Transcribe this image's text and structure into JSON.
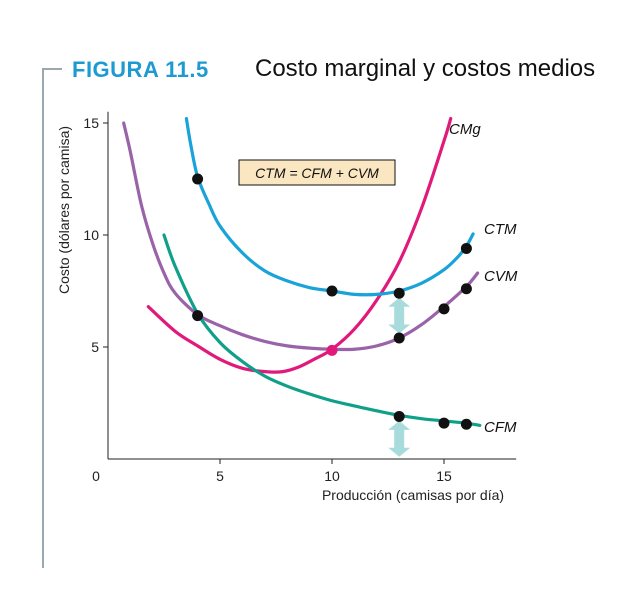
{
  "figure": {
    "label": "FIGURA 11.5",
    "title": "Costo marginal y costos medios"
  },
  "chart_data": {
    "type": "line",
    "xlabel": "Producción (camisas por día)",
    "ylabel": "Costo (dólares por camisa)",
    "xlim": [
      0,
      18
    ],
    "ylim": [
      0,
      15.5
    ],
    "x_ticks": [
      0,
      5,
      10,
      15
    ],
    "y_ticks": [
      5,
      10,
      15
    ],
    "grid": false,
    "annotation": "CTM = CFM + CVM",
    "annotation_box_color": "#fbe6c2",
    "arrow_color": "#a8dcdc",
    "dot_color": "#111111",
    "series": [
      {
        "name": "CMg",
        "color": "#e0197a",
        "points": [
          [
            1.8,
            6.8
          ],
          [
            3,
            5.7
          ],
          [
            4,
            5.05
          ],
          [
            5,
            4.45
          ],
          [
            6,
            4.05
          ],
          [
            7,
            3.9
          ],
          [
            7.8,
            3.9
          ],
          [
            8.5,
            4.1
          ],
          [
            9.2,
            4.45
          ],
          [
            10,
            4.9
          ],
          [
            11,
            5.8
          ],
          [
            12,
            7.1
          ],
          [
            13,
            8.8
          ],
          [
            14,
            11.2
          ],
          [
            15,
            14.2
          ],
          [
            15.3,
            15.2
          ]
        ]
      },
      {
        "name": "CTM",
        "color": "#1aa3d8",
        "points": [
          [
            3.5,
            15.2
          ],
          [
            3.7,
            14
          ],
          [
            4,
            12.6
          ],
          [
            4.5,
            11.4
          ],
          [
            5,
            10.4
          ],
          [
            6,
            9.2
          ],
          [
            7,
            8.4
          ],
          [
            8,
            7.95
          ],
          [
            9,
            7.65
          ],
          [
            10,
            7.5
          ],
          [
            11,
            7.35
          ],
          [
            12,
            7.35
          ],
          [
            13,
            7.5
          ],
          [
            14,
            7.85
          ],
          [
            15,
            8.45
          ],
          [
            15.6,
            9
          ],
          [
            16,
            9.5
          ],
          [
            16.3,
            10.05
          ]
        ]
      },
      {
        "name": "CVM",
        "color": "#9a62a8",
        "points": [
          [
            0.7,
            15
          ],
          [
            1,
            13.7
          ],
          [
            1.5,
            11.3
          ],
          [
            2,
            9.6
          ],
          [
            2.5,
            8.3
          ],
          [
            3,
            7.4
          ],
          [
            4,
            6.45
          ],
          [
            5,
            5.95
          ],
          [
            6,
            5.55
          ],
          [
            7,
            5.25
          ],
          [
            8,
            5.05
          ],
          [
            9,
            4.95
          ],
          [
            10,
            4.9
          ],
          [
            11,
            4.9
          ],
          [
            12,
            5.05
          ],
          [
            13,
            5.4
          ],
          [
            14,
            6
          ],
          [
            15,
            6.8
          ],
          [
            16,
            7.7
          ],
          [
            16.5,
            8.3
          ]
        ]
      },
      {
        "name": "CFM",
        "color": "#10a08a",
        "points": [
          [
            2.5,
            10
          ],
          [
            3,
            8.6
          ],
          [
            4,
            6.5
          ],
          [
            5,
            5.2
          ],
          [
            6,
            4.35
          ],
          [
            7,
            3.7
          ],
          [
            8,
            3.25
          ],
          [
            9,
            2.9
          ],
          [
            10,
            2.6
          ],
          [
            11,
            2.37
          ],
          [
            12,
            2.15
          ],
          [
            13,
            1.95
          ],
          [
            14,
            1.8
          ],
          [
            15,
            1.7
          ],
          [
            16,
            1.6
          ],
          [
            16.6,
            1.5
          ]
        ]
      }
    ],
    "markers": [
      {
        "series": "CTM",
        "x": 4,
        "y": 12.5
      },
      {
        "series": "CTM",
        "x": 10,
        "y": 7.5
      },
      {
        "series": "CTM",
        "x": 13,
        "y": 7.4
      },
      {
        "series": "CTM",
        "x": 16,
        "y": 9.4
      },
      {
        "series": "CVM",
        "x": 4,
        "y": 6.4
      },
      {
        "series": "CVM",
        "x": 13,
        "y": 5.4
      },
      {
        "series": "CVM",
        "x": 15,
        "y": 6.7
      },
      {
        "series": "CVM",
        "x": 16,
        "y": 7.6
      },
      {
        "series": "CFM",
        "x": 13,
        "y": 1.9
      },
      {
        "series": "CFM",
        "x": 15,
        "y": 1.6
      },
      {
        "series": "CFM",
        "x": 16,
        "y": 1.55
      }
    ],
    "intersection_marker": {
      "x": 10,
      "y": 4.85,
      "color": "#e0197a"
    },
    "double_arrows": [
      {
        "x": 13,
        "y_from": 5.6,
        "y_to": 7.2
      },
      {
        "x": 13,
        "y_from": 0.1,
        "y_to": 1.7
      }
    ]
  }
}
